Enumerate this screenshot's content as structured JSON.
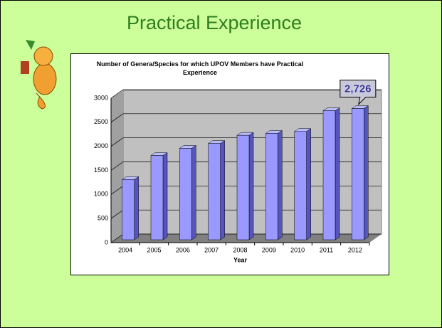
{
  "slide": {
    "title": "Practical Experience"
  },
  "chart_data": {
    "type": "bar",
    "title": "Number of Genera/Species for which UPOV Members have Practical Experience",
    "x_label": "Year",
    "categories": [
      "2004",
      "2005",
      "2006",
      "2007",
      "2008",
      "2009",
      "2010",
      "2011",
      "2012"
    ],
    "values": [
      1250,
      1750,
      1900,
      2000,
      2170,
      2210,
      2250,
      2680,
      2726
    ],
    "value_labels": [
      null,
      null,
      null,
      null,
      null,
      null,
      null,
      null,
      "2,726"
    ],
    "color": "#9999ff",
    "ylim": [
      0,
      3000
    ],
    "yticks": [
      0,
      500,
      1000,
      1500,
      2000,
      2500,
      3000
    ],
    "grid": true
  }
}
